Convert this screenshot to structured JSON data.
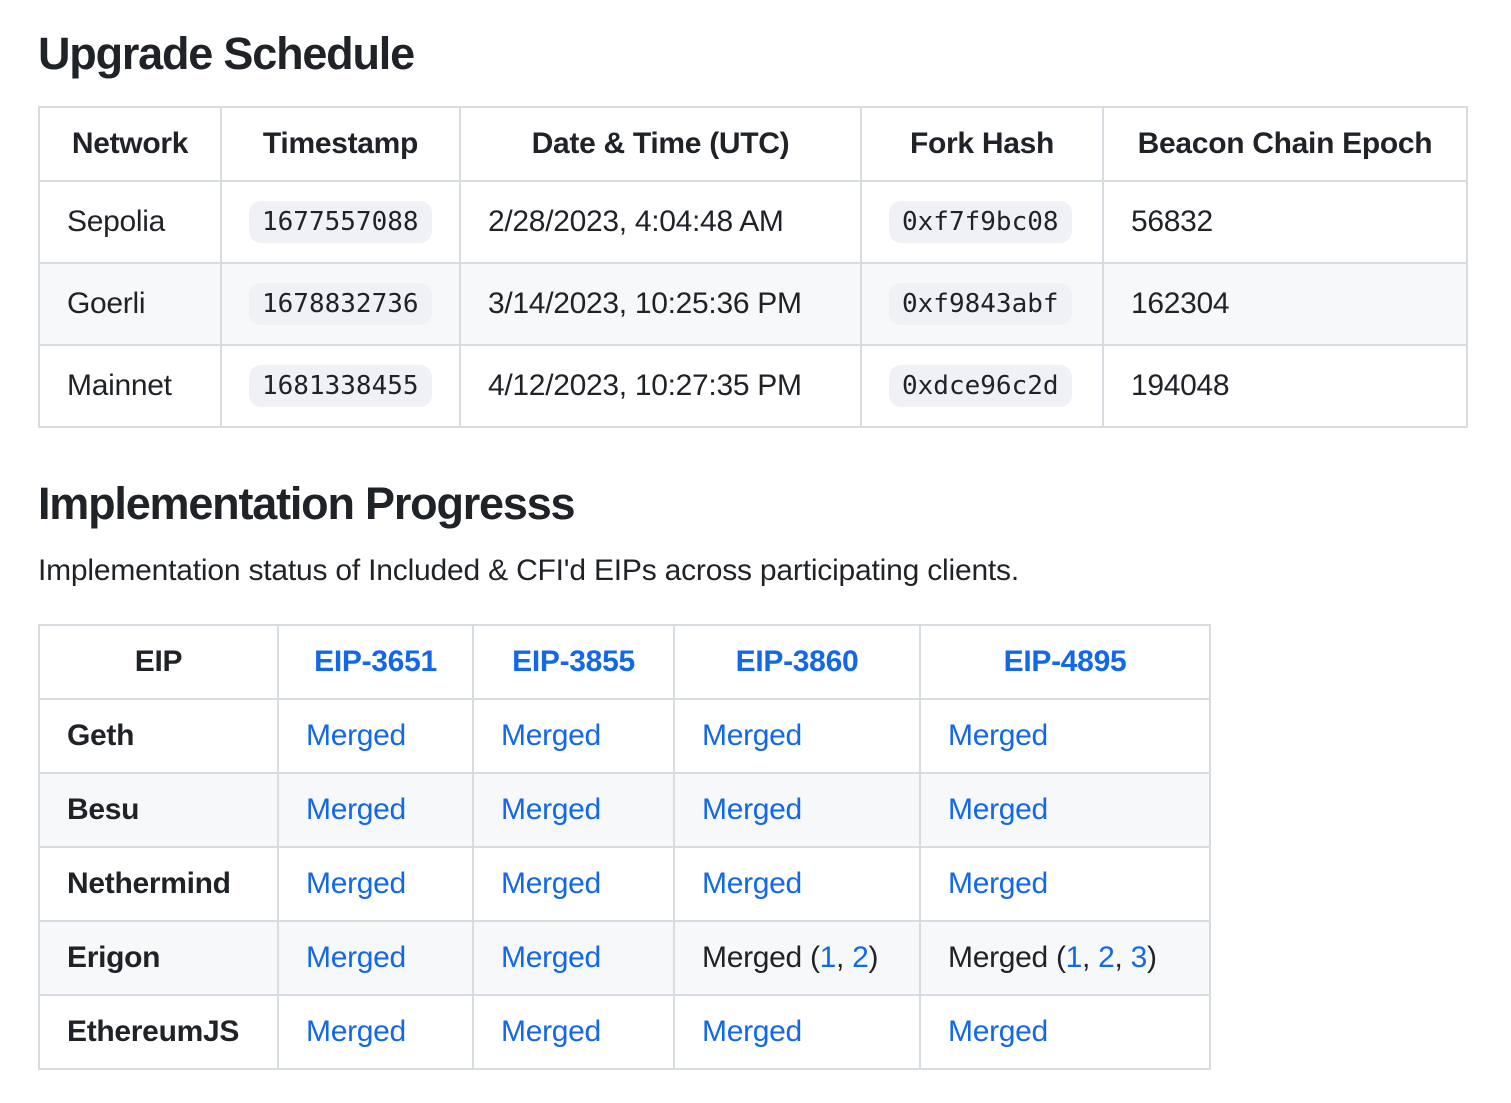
{
  "theme": {
    "background": "#ffffff",
    "text_color": "#1f2328",
    "link_color": "#1268e8",
    "border_color": "#d7dce2",
    "row_stripe_color": "#f6f8fa",
    "code_chip_background": "#eff1f4"
  },
  "upgrade_schedule": {
    "heading": "Upgrade Schedule",
    "columns": [
      "Network",
      "Timestamp",
      "Date & Time (UTC)",
      "Fork Hash",
      "Beacon Chain Epoch"
    ],
    "rows": [
      {
        "network": "Sepolia",
        "timestamp": "1677557088",
        "datetime": "2/28/2023, 4:04:48 AM",
        "fork_hash": "0xf7f9bc08",
        "beacon_epoch": "56832"
      },
      {
        "network": "Goerli",
        "timestamp": "1678832736",
        "datetime": "3/14/2023, 10:25:36 PM",
        "fork_hash": "0xf9843abf",
        "beacon_epoch": "162304"
      },
      {
        "network": "Mainnet",
        "timestamp": "1681338455",
        "datetime": "4/12/2023, 10:27:35 PM",
        "fork_hash": "0xdce96c2d",
        "beacon_epoch": "194048"
      }
    ]
  },
  "implementation_progress": {
    "heading": "Implementation Progresss",
    "description": "Implementation status of Included & CFI'd EIPs across participating clients.",
    "columns": [
      "EIP",
      "EIP-3651",
      "EIP-3855",
      "EIP-3860",
      "EIP-4895"
    ],
    "rows": [
      {
        "client": "Geth",
        "eip3651": "Merged",
        "eip3855": "Merged",
        "eip3860": "Merged",
        "eip4895": "Merged"
      },
      {
        "client": "Besu",
        "eip3651": "Merged",
        "eip3855": "Merged",
        "eip3860": "Merged",
        "eip4895": "Merged"
      },
      {
        "client": "Nethermind",
        "eip3651": "Merged",
        "eip3855": "Merged",
        "eip3860": "Merged",
        "eip4895": "Merged"
      },
      {
        "client": "Erigon",
        "eip3651": "Merged",
        "eip3855": "Merged",
        "eip3860_parts": {
          "prefix": "Merged (",
          "link_1": "1",
          "sep_1": ", ",
          "link_2": "2",
          "suffix": ")"
        },
        "eip4895_parts": {
          "prefix": "Merged (",
          "link_1": "1",
          "sep_1": ", ",
          "link_2": "2",
          "sep_2": ", ",
          "link_3": "3",
          "suffix": ")"
        }
      },
      {
        "client": "EthereumJS",
        "eip3651": "Merged",
        "eip3855": "Merged",
        "eip3860": "Merged",
        "eip4895": "Merged"
      }
    ]
  }
}
